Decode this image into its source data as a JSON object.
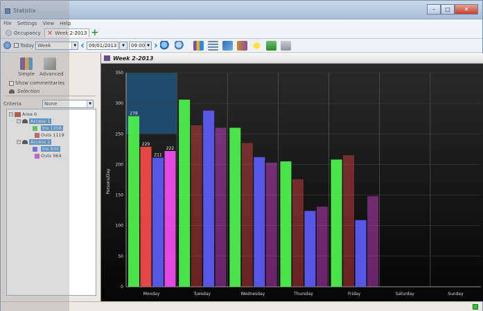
{
  "app": {
    "title": "Statistix"
  },
  "menu": [
    "File",
    "Settings",
    "View",
    "Help"
  ],
  "tabs": [
    {
      "label": "Occupancy"
    },
    {
      "label": "Week 2-2013"
    }
  ],
  "toolbar": {
    "today_label": "Today",
    "period": "Week",
    "date": "09/01/2013",
    "time": "09:00",
    "icons": [
      "zoom-in-icon",
      "zoom-out-icon",
      "bar-chart-icon",
      "table-icon",
      "report-icon",
      "export-icon",
      "star-icon",
      "book-icon",
      "print-icon"
    ]
  },
  "left_panel": {
    "simple_label": "Simple",
    "advanced_label": "Advanced",
    "show_commentaries": "Show commentaries",
    "selection_label": "Selection",
    "criteria_label": "Criteria",
    "criteria_value": "None",
    "tree": {
      "area": "Area 6",
      "access1": "Access 1",
      "ins1": "Ins 1258",
      "outs1": "Outs 1119",
      "access2": "Access 2",
      "ins2": "Ins 944",
      "outs2": "Outs 964"
    }
  },
  "chart_header": {
    "title": "Week 2-2013"
  },
  "colors": {
    "green": "#4dee4d",
    "red": "#f04a4a",
    "blue": "#5b5bf0",
    "magenta": "#ee4dee",
    "highlight": "#1d5a86"
  },
  "chart_data": {
    "type": "bar",
    "ylabel": "Persons/Day",
    "xlabel": "",
    "ylim": [
      0,
      350
    ],
    "yticks": [
      0,
      50,
      100,
      150,
      200,
      250,
      300,
      350
    ],
    "categories": [
      "Monday",
      "Tuesday",
      "Wednesday",
      "Thursday",
      "Friday",
      "Saturday",
      "Sunday"
    ],
    "highlighted_category": "Monday",
    "series": [
      {
        "color": "#4dee4d",
        "values": [
          279,
          306,
          260,
          205,
          208,
          null,
          null
        ]
      },
      {
        "color": "#f04a4a",
        "values": [
          229,
          264,
          235,
          176,
          215,
          null,
          null
        ]
      },
      {
        "color": "#5b5bf0",
        "values": [
          211,
          288,
          212,
          124,
          109,
          null,
          null
        ]
      },
      {
        "color": "#ee4dee",
        "values": [
          222,
          260,
          203,
          131,
          148,
          null,
          null
        ]
      }
    ],
    "data_labels": {
      "Monday": [
        "279",
        "229",
        "211",
        "222"
      ]
    }
  }
}
